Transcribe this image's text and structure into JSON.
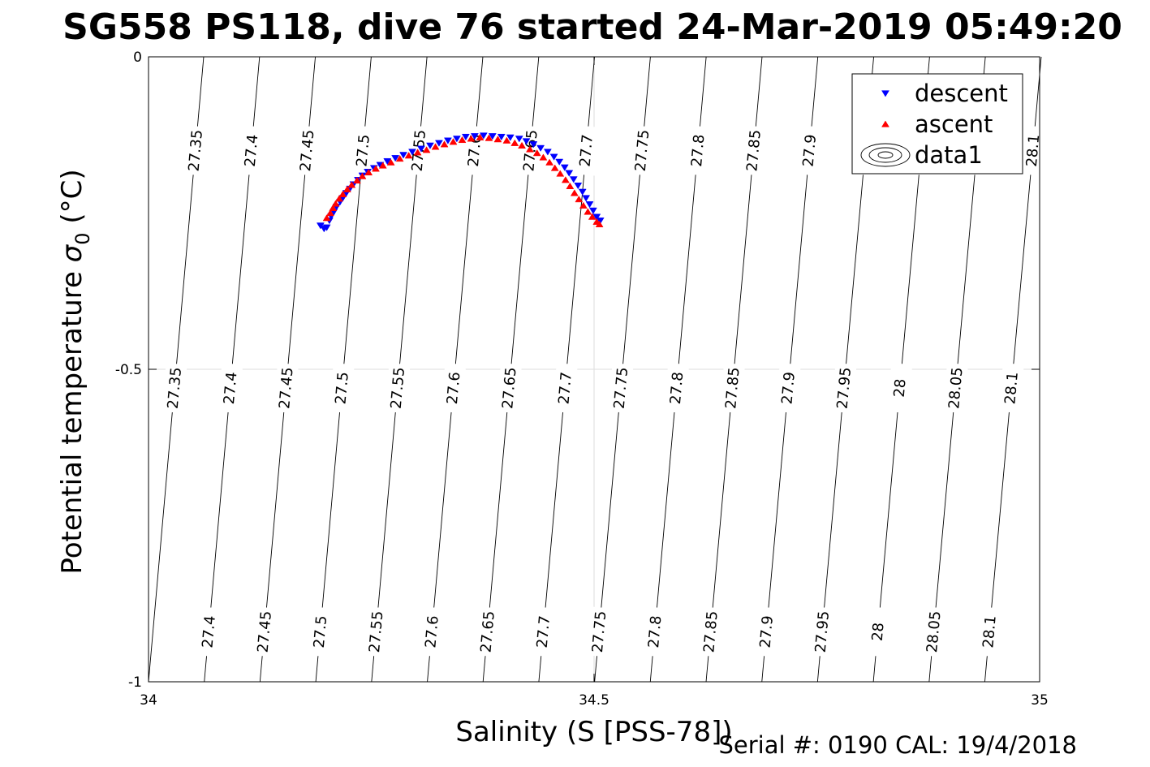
{
  "chart_data": {
    "type": "scatter",
    "title": "SG558 PS118, dive 76 started 24-Mar-2019 05:49:20",
    "xlabel": "Salinity (S [PSS-78])",
    "ylabel_main": "Potential temperature ",
    "ylabel_sigma": "σ",
    "ylabel_sub": "0",
    "ylabel_unit": " (°C)",
    "xlim": [
      34,
      35
    ],
    "ylim": [
      -1,
      0
    ],
    "xticks": [
      {
        "value": 34,
        "label": "34"
      },
      {
        "value": 34.5,
        "label": "34.5"
      },
      {
        "value": 35,
        "label": "35"
      }
    ],
    "yticks": [
      {
        "value": 0,
        "label": "0"
      },
      {
        "value": -0.5,
        "label": "-0.5"
      },
      {
        "value": -1,
        "label": "-1"
      }
    ],
    "grid": true,
    "legend_position": "top-right",
    "legend": [
      {
        "label": "descent",
        "marker": "triangle-down",
        "color": "#0000ff"
      },
      {
        "label": "ascent",
        "marker": "triangle-up",
        "color": "#ff0000"
      },
      {
        "label": "data1",
        "marker": "contour",
        "color": "#000000"
      }
    ],
    "contours": {
      "levels": [
        "27.35",
        "27.4",
        "27.45",
        "27.5",
        "27.55",
        "27.6",
        "27.65",
        "27.7",
        "27.75",
        "27.8",
        "27.85",
        "27.9",
        "27.95",
        "28",
        "28.05",
        "28.1"
      ],
      "x_at_top": [
        34.0619,
        34.1246,
        34.1872,
        34.2499,
        34.3125,
        34.3752,
        34.4379,
        34.5005,
        34.5632,
        34.6258,
        34.6885,
        34.7511,
        34.8138,
        34.8765,
        34.9391,
        35.0018
      ],
      "x_at_bottom": [
        34.0,
        34.0626,
        34.1251,
        34.1877,
        34.2503,
        34.3129,
        34.3754,
        34.438,
        34.5006,
        34.5631,
        34.6257,
        34.6883,
        34.7508,
        34.8134,
        34.876,
        34.9385
      ],
      "label_rows_theta": [
        -0.15,
        -0.53,
        -0.92
      ]
    },
    "series": [
      {
        "name": "descent",
        "color": "#0000ff",
        "marker": "triangle-down",
        "points": [
          [
            34.193,
            -0.27
          ],
          [
            34.197,
            -0.275
          ],
          [
            34.2,
            -0.273
          ],
          [
            34.203,
            -0.262
          ],
          [
            34.205,
            -0.255
          ],
          [
            34.208,
            -0.248
          ],
          [
            34.211,
            -0.24
          ],
          [
            34.215,
            -0.232
          ],
          [
            34.218,
            -0.226
          ],
          [
            34.222,
            -0.218
          ],
          [
            34.226,
            -0.211
          ],
          [
            34.23,
            -0.204
          ],
          [
            34.235,
            -0.197
          ],
          [
            34.24,
            -0.19
          ],
          [
            34.246,
            -0.184
          ],
          [
            34.253,
            -0.178
          ],
          [
            34.26,
            -0.173
          ],
          [
            34.268,
            -0.167
          ],
          [
            34.277,
            -0.162
          ],
          [
            34.286,
            -0.157
          ],
          [
            34.296,
            -0.152
          ],
          [
            34.306,
            -0.147
          ],
          [
            34.316,
            -0.142
          ],
          [
            34.326,
            -0.138
          ],
          [
            34.336,
            -0.134
          ],
          [
            34.346,
            -0.131
          ],
          [
            34.356,
            -0.128
          ],
          [
            34.366,
            -0.127
          ],
          [
            34.376,
            -0.126
          ],
          [
            34.386,
            -0.127
          ],
          [
            34.396,
            -0.128
          ],
          [
            34.406,
            -0.129
          ],
          [
            34.416,
            -0.131
          ],
          [
            34.424,
            -0.135
          ],
          [
            34.432,
            -0.14
          ],
          [
            34.44,
            -0.146
          ],
          [
            34.448,
            -0.152
          ],
          [
            34.455,
            -0.16
          ],
          [
            34.461,
            -0.168
          ],
          [
            34.467,
            -0.177
          ],
          [
            34.472,
            -0.186
          ],
          [
            34.477,
            -0.196
          ],
          [
            34.482,
            -0.206
          ],
          [
            34.487,
            -0.216
          ],
          [
            34.491,
            -0.226
          ],
          [
            34.495,
            -0.236
          ],
          [
            34.499,
            -0.246
          ],
          [
            34.503,
            -0.256
          ],
          [
            34.507,
            -0.262
          ]
        ]
      },
      {
        "name": "ascent",
        "color": "#ff0000",
        "marker": "triangle-up",
        "points": [
          [
            34.2,
            -0.258
          ],
          [
            34.204,
            -0.25
          ],
          [
            34.207,
            -0.242
          ],
          [
            34.21,
            -0.235
          ],
          [
            34.214,
            -0.227
          ],
          [
            34.218,
            -0.22
          ],
          [
            34.223,
            -0.212
          ],
          [
            34.228,
            -0.205
          ],
          [
            34.234,
            -0.198
          ],
          [
            34.24,
            -0.191
          ],
          [
            34.247,
            -0.185
          ],
          [
            34.255,
            -0.179
          ],
          [
            34.263,
            -0.174
          ],
          [
            34.272,
            -0.169
          ],
          [
            34.282,
            -0.163
          ],
          [
            34.292,
            -0.158
          ],
          [
            34.302,
            -0.153
          ],
          [
            34.312,
            -0.149
          ],
          [
            34.322,
            -0.144
          ],
          [
            34.332,
            -0.14
          ],
          [
            34.342,
            -0.136
          ],
          [
            34.352,
            -0.133
          ],
          [
            34.362,
            -0.131
          ],
          [
            34.372,
            -0.129
          ],
          [
            34.382,
            -0.13
          ],
          [
            34.392,
            -0.132
          ],
          [
            34.402,
            -0.134
          ],
          [
            34.411,
            -0.138
          ],
          [
            34.419,
            -0.142
          ],
          [
            34.428,
            -0.148
          ],
          [
            34.436,
            -0.154
          ],
          [
            34.443,
            -0.161
          ],
          [
            34.45,
            -0.169
          ],
          [
            34.456,
            -0.178
          ],
          [
            34.462,
            -0.187
          ],
          [
            34.468,
            -0.197
          ],
          [
            34.473,
            -0.207
          ],
          [
            34.478,
            -0.218
          ],
          [
            34.483,
            -0.228
          ],
          [
            34.488,
            -0.238
          ],
          [
            34.493,
            -0.248
          ],
          [
            34.498,
            -0.256
          ],
          [
            34.503,
            -0.264
          ],
          [
            34.506,
            -0.268
          ]
        ]
      }
    ]
  },
  "footer": {
    "serial": "Serial #: 0190  CAL: 19/4/2018"
  }
}
